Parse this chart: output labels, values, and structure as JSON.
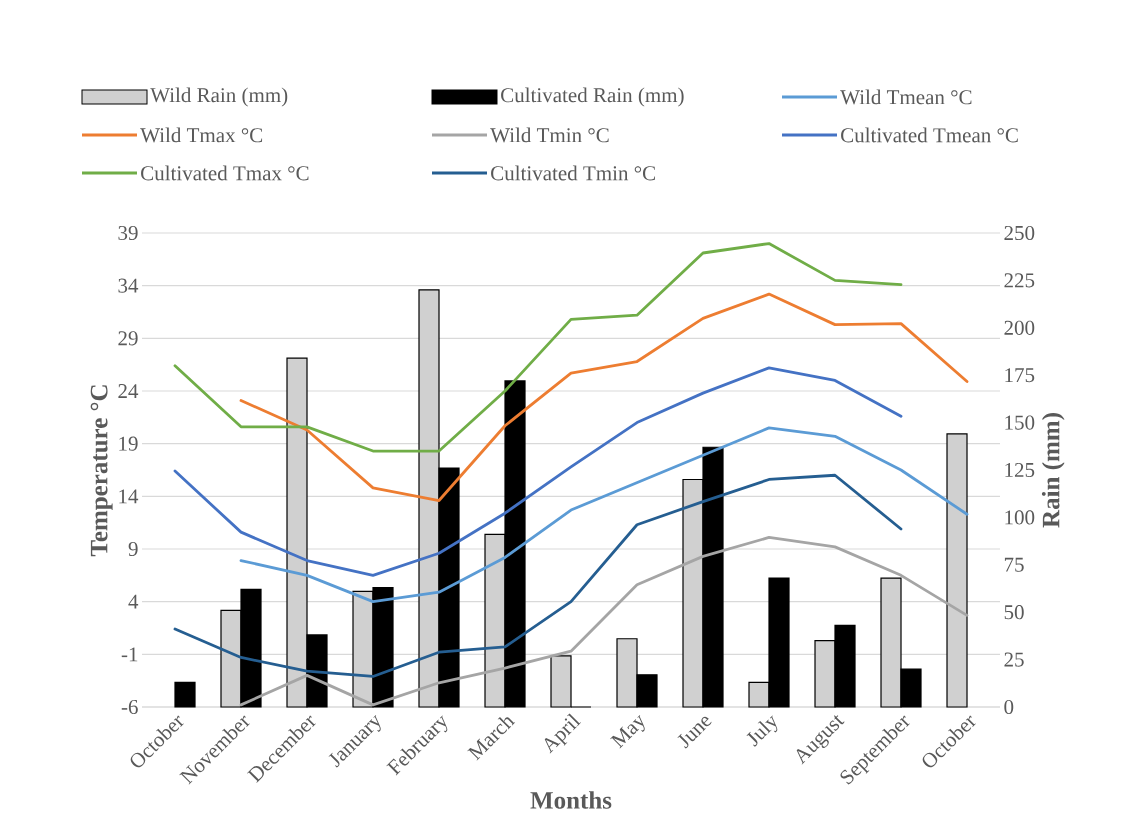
{
  "chart_data": {
    "type": "line",
    "xlabel": "Months",
    "ylabel": "Temperature °C",
    "y2label": "Rain (mm)",
    "categories": [
      "October",
      "November",
      "December",
      "January",
      "February",
      "March",
      "April",
      "May",
      "June",
      "July",
      "August",
      "September",
      "October"
    ],
    "series": [
      {
        "name": "Wild Rain (mm)",
        "type": "bar",
        "axis": "y2",
        "color": "#d0d0d0",
        "values": [
          null,
          51,
          184,
          61,
          220,
          91,
          27,
          36,
          120,
          13,
          35,
          68,
          144
        ]
      },
      {
        "name": "Cultivated Rain (mm)",
        "type": "bar",
        "axis": "y2",
        "color": "#000000",
        "values": [
          13,
          62,
          38,
          63,
          126,
          172,
          0,
          17,
          137,
          68,
          43,
          20,
          null
        ]
      },
      {
        "name": "Wild Tmean °C",
        "color": "#5b9bd5",
        "values": [
          null,
          7.9,
          6.5,
          4.0,
          4.9,
          8.2,
          12.7,
          15.3,
          17.9,
          20.5,
          19.7,
          16.5,
          12.3
        ]
      },
      {
        "name": "Wild Tmax °C",
        "color": "#ed7d31",
        "values": [
          null,
          23.1,
          20.3,
          14.8,
          13.6,
          20.7,
          25.7,
          26.8,
          30.9,
          33.2,
          30.3,
          30.4,
          24.9
        ]
      },
      {
        "name": "Wild Tmin °C",
        "color": "#a5a5a5",
        "values": [
          null,
          -5.8,
          -3.0,
          -5.8,
          -3.7,
          -2.3,
          -0.7,
          5.6,
          8.3,
          10.1,
          9.2,
          6.5,
          2.7
        ]
      },
      {
        "name": "Cultivated Tmean °C",
        "color": "#4472c4",
        "values": [
          16.4,
          10.6,
          7.9,
          6.5,
          8.6,
          12.4,
          16.8,
          21.0,
          23.8,
          26.2,
          25.0,
          21.6,
          null
        ]
      },
      {
        "name": "Cultivated Tmax °C",
        "color": "#70ad47",
        "values": [
          26.4,
          20.6,
          20.6,
          18.3,
          18.3,
          24.0,
          30.8,
          31.2,
          37.1,
          38.0,
          34.5,
          34.1,
          null
        ]
      },
      {
        "name": "Cultivated Tmin °C",
        "color": "#255e91",
        "values": [
          1.4,
          -1.3,
          -2.6,
          -3.1,
          -0.8,
          -0.3,
          4.0,
          11.3,
          13.5,
          15.6,
          16.0,
          10.9,
          null
        ]
      }
    ],
    "ylim": [
      -6,
      39
    ],
    "yticks": [
      -6,
      -1,
      4,
      9,
      14,
      19,
      24,
      29,
      34,
      39
    ],
    "y2lim": [
      0,
      250
    ],
    "y2ticks": [
      0,
      25,
      50,
      75,
      100,
      125,
      150,
      175,
      200,
      225,
      250
    ],
    "grid": "y",
    "legend": "top",
    "marker": "none",
    "line_style": "solid"
  }
}
